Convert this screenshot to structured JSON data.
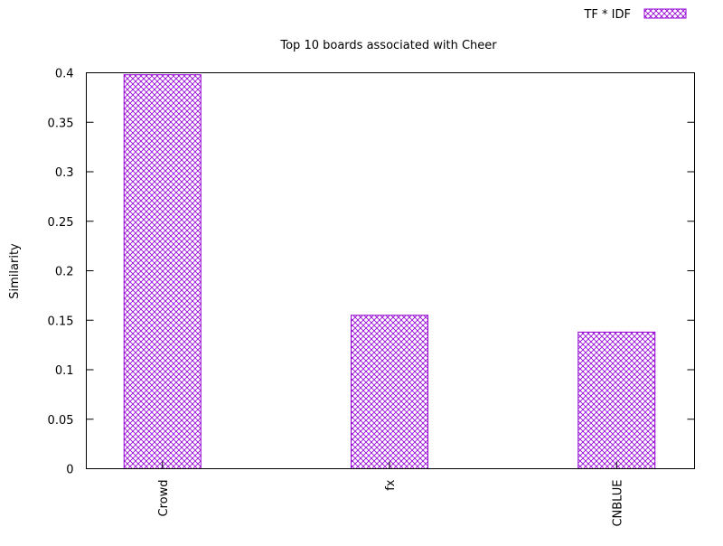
{
  "chart_data": {
    "type": "bar",
    "title": "Top 10 boards associated with Cheer",
    "xlabel": "",
    "ylabel": "Similarity",
    "ylim": [
      0,
      0.4
    ],
    "yticks": [
      "0",
      "0.05",
      "0.1",
      "0.15",
      "0.2",
      "0.25",
      "0.3",
      "0.35",
      "0.4"
    ],
    "categories": [
      "Crowd",
      "fx",
      "CNBLUE"
    ],
    "series": [
      {
        "name": "TF * IDF",
        "values": [
          0.398,
          0.155,
          0.138
        ]
      }
    ],
    "legend_position": "top-right",
    "grid": false,
    "bar_color": "#9400d3",
    "bar_pattern": "crosshatch"
  }
}
